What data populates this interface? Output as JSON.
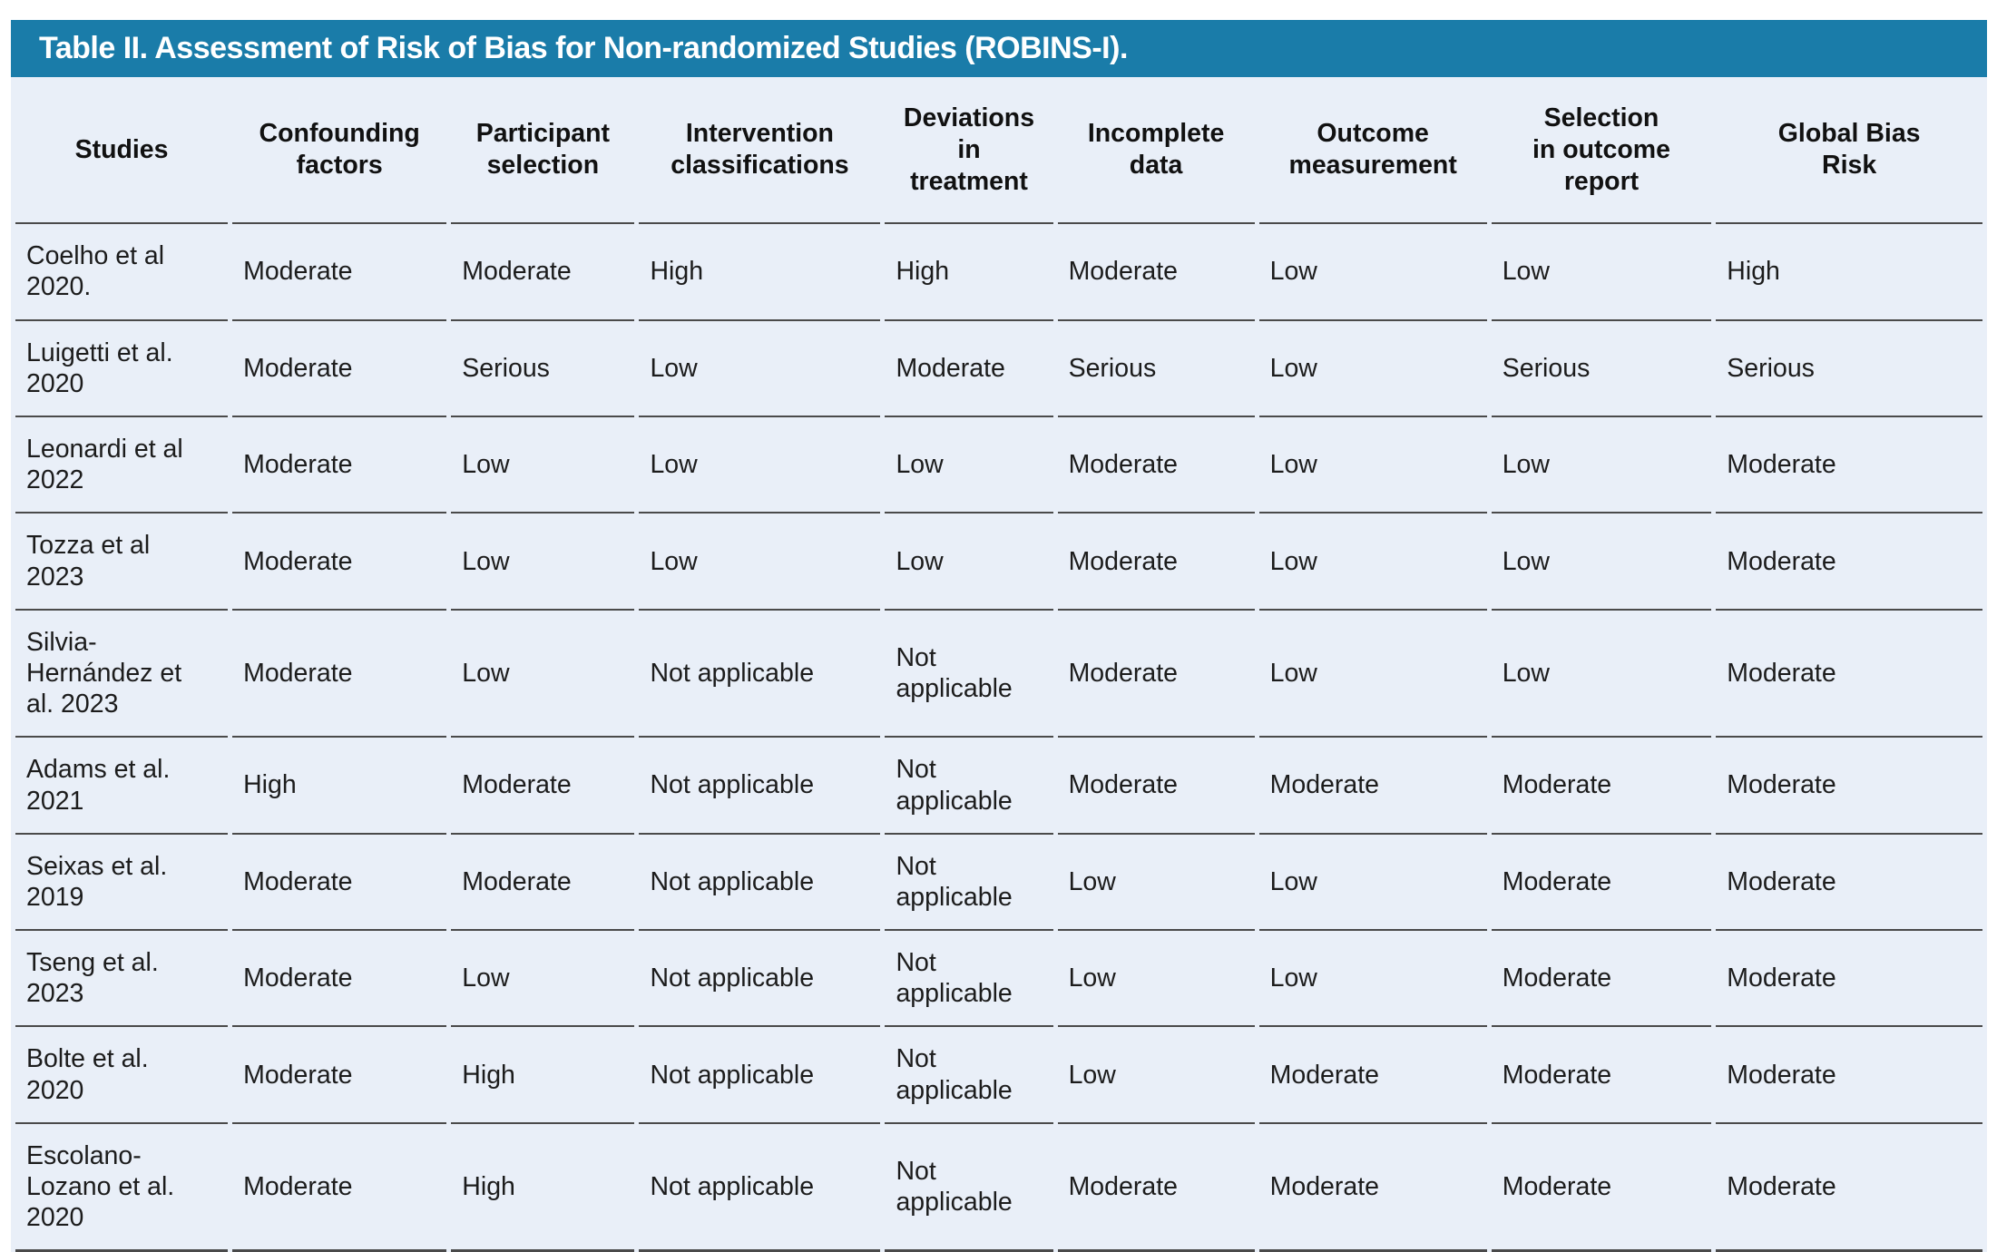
{
  "title": "Table II. Assessment of Risk of Bias for Non-randomized Studies (ROBINS-I).",
  "colors": {
    "title_bar": "#1a7ca9",
    "table_background": "#e9eff8",
    "rule": "#4a4a4a",
    "title_text": "#ffffff",
    "body_text": "#1c1c1c"
  },
  "table": {
    "columns": [
      "Studies",
      "Confounding\nfactors",
      "Participant\nselection",
      "Intervention\nclassifications",
      "Deviations\nin\ntreatment",
      "Incomplete\ndata",
      "Outcome\nmeasurement",
      "Selection\nin outcome\nreport",
      "Global Bias\nRisk"
    ],
    "rows": [
      {
        "study": "Coelho et al 2020.",
        "ratings": [
          "Moderate",
          "Moderate",
          "High",
          "High",
          "Moderate",
          "Low",
          "Low",
          "High"
        ]
      },
      {
        "study": "Luigetti et al. 2020",
        "ratings": [
          "Moderate",
          "Serious",
          "Low",
          "Moderate",
          "Serious",
          "Low",
          "Serious",
          "Serious"
        ]
      },
      {
        "study": "Leonardi et al 2022",
        "ratings": [
          "Moderate",
          "Low",
          "Low",
          "Low",
          "Moderate",
          "Low",
          "Low",
          "Moderate"
        ]
      },
      {
        "study": "Tozza et al 2023",
        "ratings": [
          "Moderate",
          "Low",
          "Low",
          "Low",
          "Moderate",
          "Low",
          "Low",
          "Moderate"
        ]
      },
      {
        "study": "Silvia-Hernández et al. 2023",
        "ratings": [
          "Moderate",
          "Low",
          "Not applicable",
          "Not applicable",
          "Moderate",
          "Low",
          "Low",
          "Moderate"
        ]
      },
      {
        "study": "Adams et al. 2021",
        "ratings": [
          "High",
          "Moderate",
          "Not applicable",
          "Not applicable",
          "Moderate",
          "Moderate",
          "Moderate",
          "Moderate"
        ]
      },
      {
        "study": "Seixas et al. 2019",
        "ratings": [
          "Moderate",
          "Moderate",
          "Not applicable",
          "Not applicable",
          "Low",
          "Low",
          "Moderate",
          "Moderate"
        ]
      },
      {
        "study": "Tseng et al. 2023",
        "ratings": [
          "Moderate",
          "Low",
          "Not applicable",
          "Not applicable",
          "Low",
          "Low",
          "Moderate",
          "Moderate"
        ]
      },
      {
        "study": "Bolte et al. 2020",
        "ratings": [
          "Moderate",
          "High",
          "Not applicable",
          "Not applicable",
          "Low",
          "Moderate",
          "Moderate",
          "Moderate"
        ]
      },
      {
        "study": "Escolano-Lozano et al. 2020",
        "ratings": [
          "Moderate",
          "High",
          "Not applicable",
          "Not applicable",
          "Moderate",
          "Moderate",
          "Moderate",
          "Moderate"
        ]
      }
    ]
  }
}
